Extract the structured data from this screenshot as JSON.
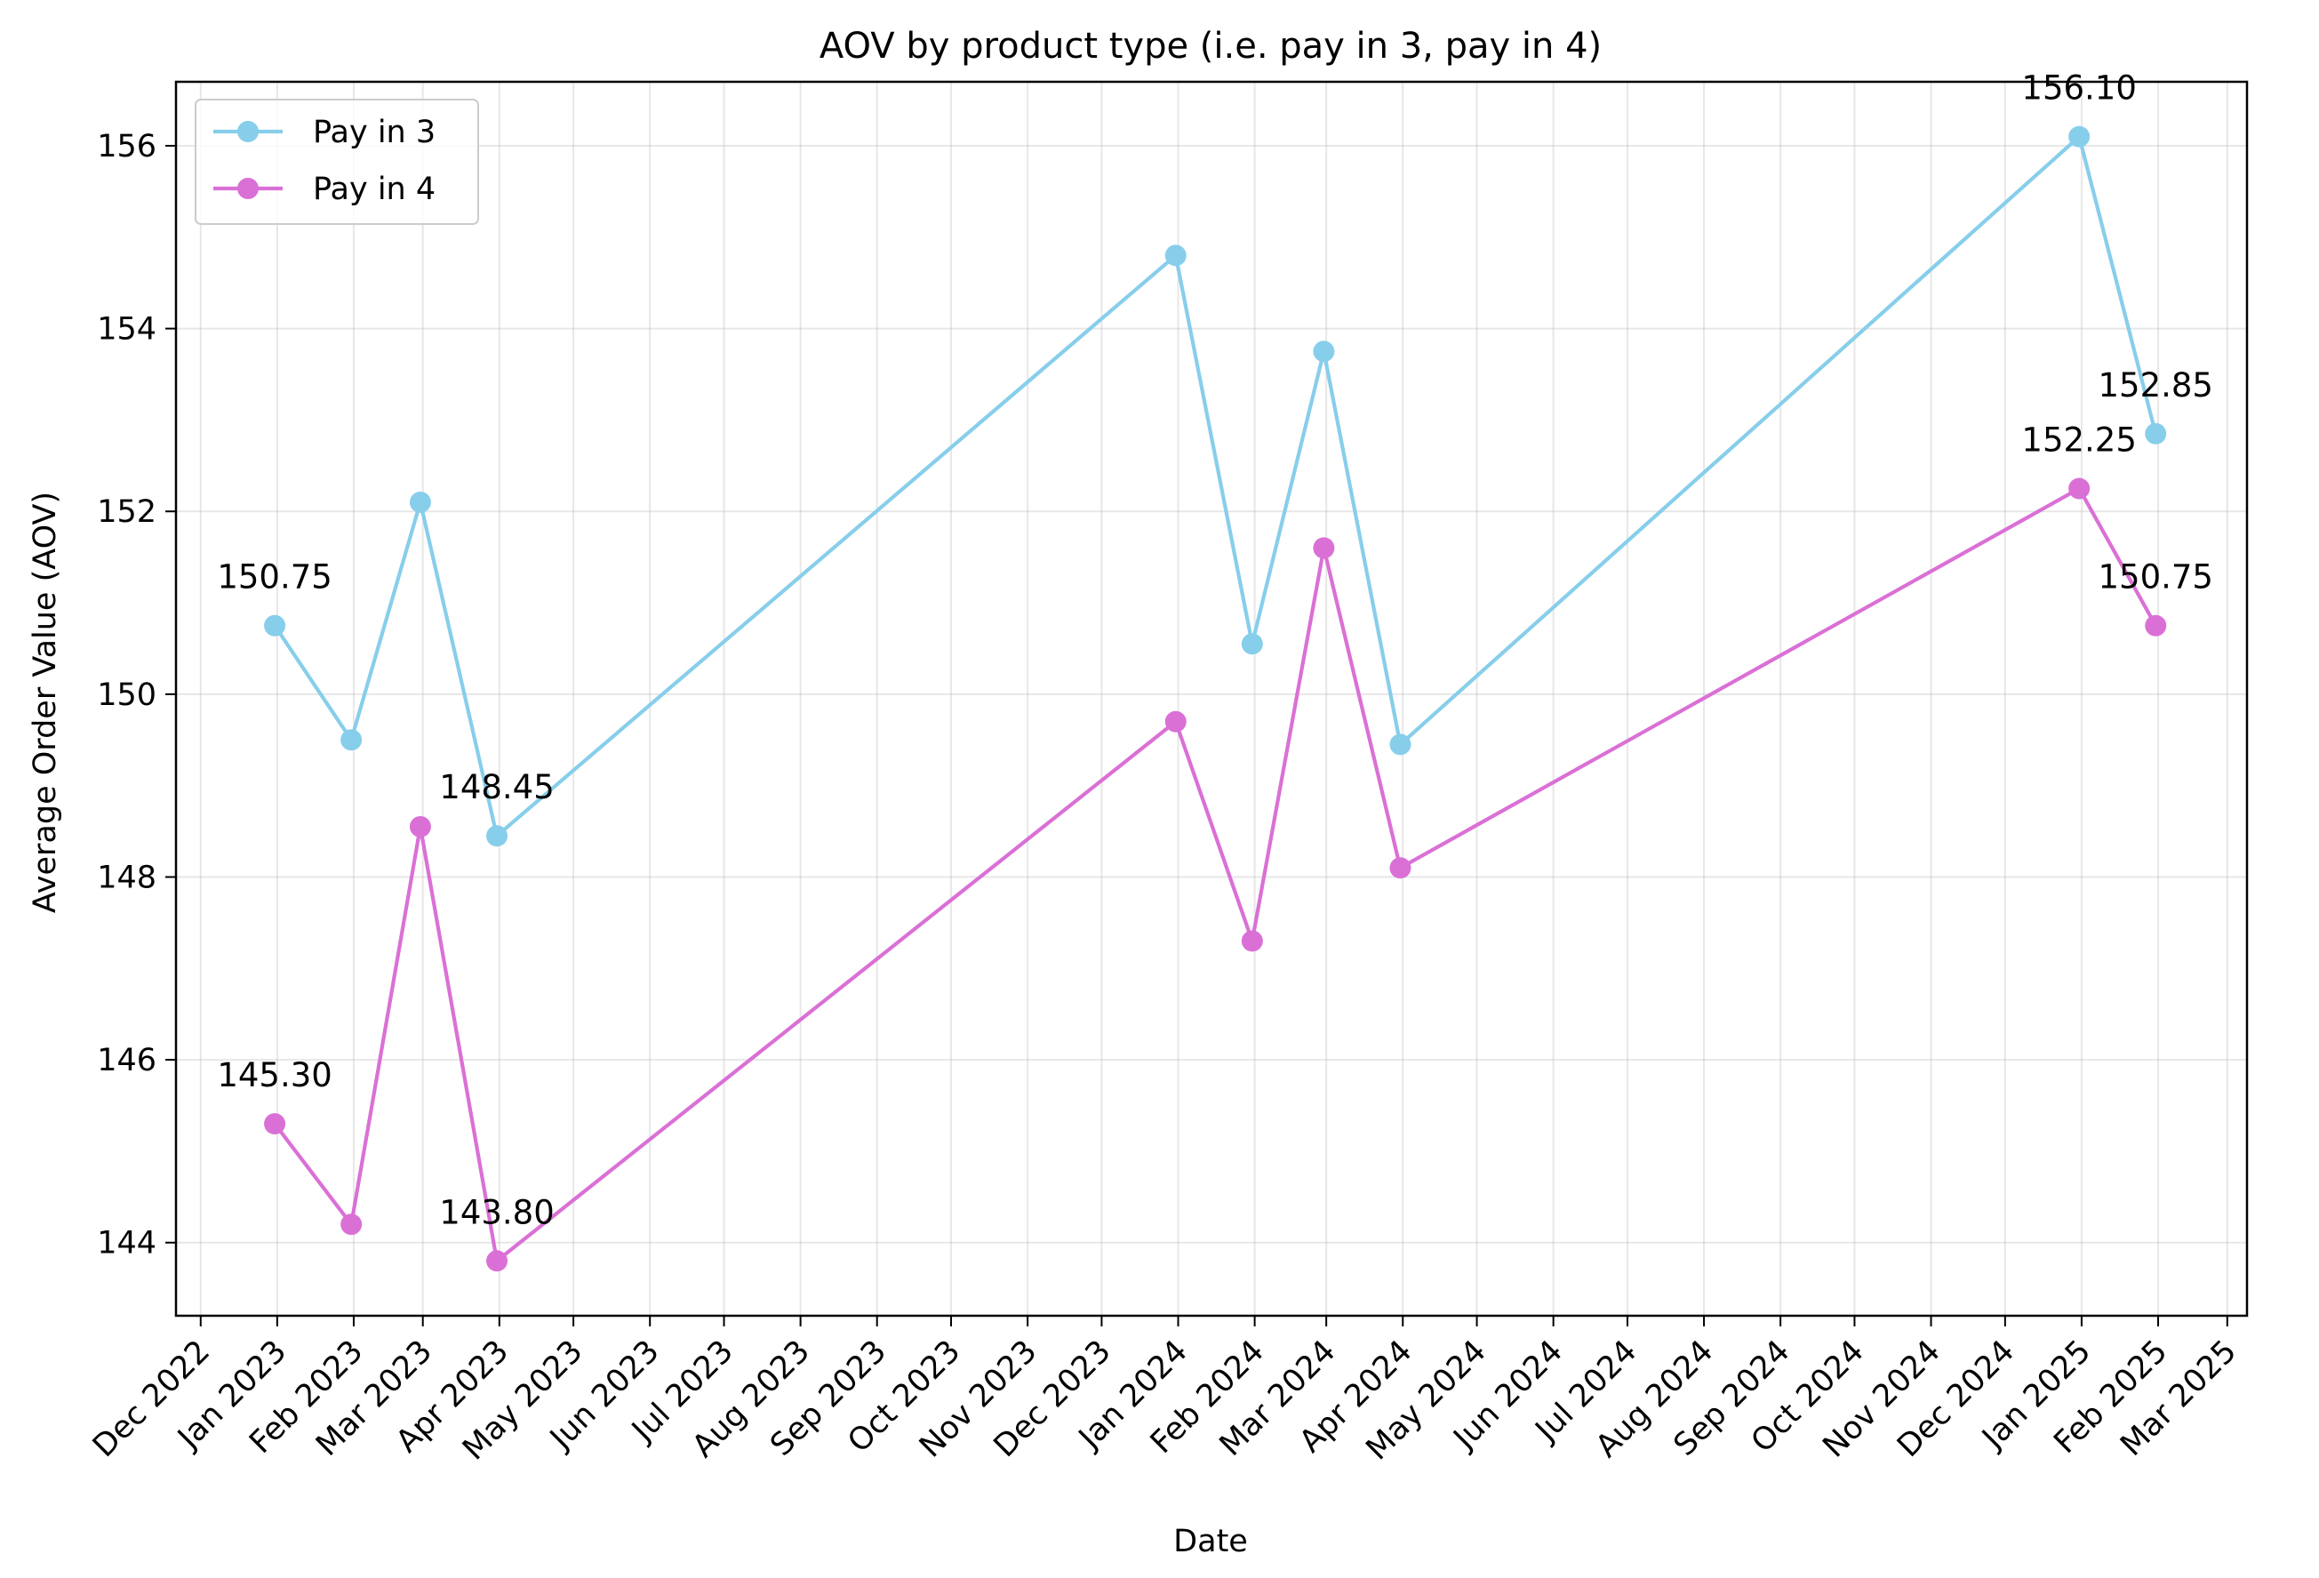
{
  "chart_data": {
    "type": "line",
    "title": "AOV by product type (i.e. pay in 3, pay in 4)",
    "xlabel": "Date",
    "ylabel": "Average Order Value (AOV)",
    "x_axis_type": "date",
    "xlim": [
      "2022-11-21",
      "2025-03-09"
    ],
    "ylim": [
      143.2,
      156.7
    ],
    "y_ticks": [
      144,
      146,
      148,
      150,
      152,
      154,
      156
    ],
    "x_ticks": [
      "2022-12-01",
      "2023-01-01",
      "2023-02-01",
      "2023-03-01",
      "2023-04-01",
      "2023-05-01",
      "2023-06-01",
      "2023-07-01",
      "2023-08-01",
      "2023-09-01",
      "2023-10-01",
      "2023-11-01",
      "2023-12-01",
      "2024-01-01",
      "2024-02-01",
      "2024-03-01",
      "2024-04-01",
      "2024-05-01",
      "2024-06-01",
      "2024-07-01",
      "2024-08-01",
      "2024-09-01",
      "2024-10-01",
      "2024-11-01",
      "2024-12-01",
      "2025-01-01",
      "2025-02-01",
      "2025-03-01"
    ],
    "x_tick_labels": [
      "Dec 2022",
      "Jan 2023",
      "Feb 2023",
      "Mar 2023",
      "Apr 2023",
      "May 2023",
      "Jun 2023",
      "Jul 2023",
      "Aug 2023",
      "Sep 2023",
      "Oct 2023",
      "Nov 2023",
      "Dec 2023",
      "Jan 2024",
      "Feb 2024",
      "Mar 2024",
      "Apr 2024",
      "May 2024",
      "Jun 2024",
      "Jul 2024",
      "Aug 2024",
      "Sep 2024",
      "Oct 2024",
      "Nov 2024",
      "Dec 2024",
      "Jan 2025",
      "Feb 2025",
      "Mar 2025"
    ],
    "grid": true,
    "legend_position": "top-left",
    "series": [
      {
        "name": "Pay in 3",
        "color": "#87ceeb",
        "x": [
          "2022-12-31",
          "2023-01-31",
          "2023-02-28",
          "2023-03-31",
          "2023-12-31",
          "2024-01-31",
          "2024-02-29",
          "2024-03-31",
          "2024-12-31",
          "2025-01-31"
        ],
        "values": [
          150.75,
          149.5,
          152.1,
          148.45,
          154.8,
          150.55,
          153.75,
          149.45,
          156.1,
          152.85
        ],
        "data_labels": [
          "150.75",
          "",
          "",
          "148.45",
          "",
          "",
          "",
          "",
          "156.10",
          "152.85"
        ]
      },
      {
        "name": "Pay in 4",
        "color": "#da70d6",
        "x": [
          "2022-12-31",
          "2023-01-31",
          "2023-02-28",
          "2023-03-31",
          "2023-12-31",
          "2024-01-31",
          "2024-02-29",
          "2024-03-31",
          "2024-12-31",
          "2025-01-31"
        ],
        "values": [
          145.3,
          144.2,
          148.55,
          143.8,
          149.7,
          147.3,
          151.6,
          148.1,
          152.25,
          150.75
        ],
        "data_labels": [
          "145.30",
          "",
          "",
          "143.80",
          "",
          "",
          "",
          "",
          "152.25",
          "150.75"
        ]
      }
    ]
  }
}
